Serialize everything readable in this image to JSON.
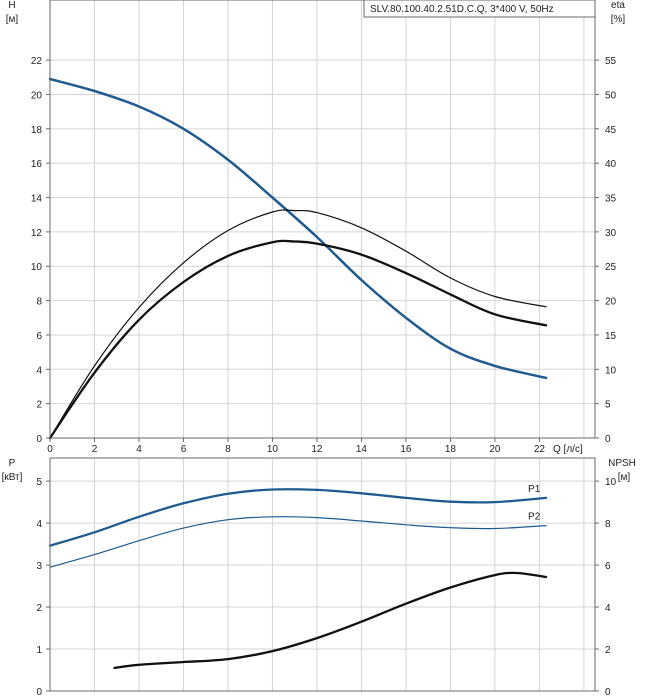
{
  "chart_data": [
    {
      "type": "line",
      "title": "SLV.80.100.40.2.51D.C.Q, 3*400 V, 50Hz",
      "xlabel": "Q [л/с]",
      "x_ticks": [
        "0",
        "2",
        "4",
        "6",
        "8",
        "10",
        "12",
        "14",
        "16",
        "18",
        "20",
        "22"
      ],
      "xlim": [
        0,
        24.5
      ],
      "ylabel_left": [
        "H",
        "[м]"
      ],
      "ylim_left": [
        0,
        25.5
      ],
      "y_ticks_left": [
        "0",
        "2",
        "4",
        "6",
        "8",
        "10",
        "12",
        "14",
        "16",
        "18",
        "20",
        "22"
      ],
      "ylabel_right": [
        "eta",
        "[%]"
      ],
      "ylim_right": [
        0,
        63.75
      ],
      "y_ticks_right": [
        "0",
        "5",
        "10",
        "15",
        "20",
        "25",
        "30",
        "35",
        "40",
        "45",
        "50",
        "55"
      ],
      "grid": true,
      "series": [
        {
          "axis": "left",
          "color": "#1f5b8f",
          "width": 2.5,
          "x": [
            0,
            2,
            4,
            6,
            8,
            10,
            12,
            14,
            16,
            18,
            20,
            22.3
          ],
          "y": [
            20.9,
            20.2,
            19.3,
            18.0,
            16.2,
            14.0,
            11.7,
            9.2,
            7.0,
            5.2,
            4.2,
            3.5
          ]
        },
        {
          "axis": "right",
          "color": "#111111",
          "width": 1.2,
          "x": [
            0,
            2,
            4,
            6,
            8,
            10,
            11,
            12,
            14,
            16,
            18,
            20,
            22.3
          ],
          "y": [
            0,
            10.5,
            19.0,
            25.5,
            30.2,
            32.9,
            33.1,
            32.8,
            30.6,
            27.2,
            23.3,
            20.6,
            19.1
          ]
        },
        {
          "axis": "right",
          "color": "#111111",
          "width": 2.3,
          "x": [
            0,
            2,
            4,
            6,
            8,
            10,
            11,
            12,
            14,
            16,
            18,
            20,
            22.3
          ],
          "y": [
            0,
            9.5,
            17.2,
            22.7,
            26.5,
            28.5,
            28.6,
            28.3,
            26.7,
            24.0,
            20.9,
            18.0,
            16.4
          ]
        }
      ]
    },
    {
      "type": "line",
      "xlim": [
        0,
        24.5
      ],
      "ylabel_left": [
        "P",
        "[кВт]"
      ],
      "ylim_left": [
        0,
        5.55
      ],
      "y_ticks_left": [
        "0",
        "1",
        "2",
        "3",
        "4",
        "5"
      ],
      "ylabel_right": [
        "NPSH",
        "[м]"
      ],
      "ylim_right": [
        0,
        11.1
      ],
      "y_ticks_right": [
        "0",
        "2",
        "4",
        "6",
        "8",
        "10"
      ],
      "grid": true,
      "series": [
        {
          "name": "P1",
          "axis": "left",
          "color": "#1f5b8f",
          "width": 2.3,
          "x": [
            0,
            2,
            4,
            6,
            8,
            10,
            12,
            14,
            16,
            18,
            20,
            22.3
          ],
          "y": [
            3.46,
            3.78,
            4.15,
            4.47,
            4.7,
            4.8,
            4.79,
            4.71,
            4.6,
            4.51,
            4.5,
            4.6
          ]
        },
        {
          "name": "P2",
          "axis": "left",
          "color": "#1f5b8f",
          "width": 1.2,
          "x": [
            0,
            2,
            4,
            6,
            8,
            10,
            12,
            14,
            16,
            18,
            20,
            22.3
          ],
          "y": [
            2.95,
            3.25,
            3.58,
            3.88,
            4.08,
            4.15,
            4.13,
            4.05,
            3.96,
            3.89,
            3.87,
            3.94
          ]
        },
        {
          "axis": "right",
          "color": "#111111",
          "width": 2.3,
          "x": [
            2.9,
            4,
            6,
            8,
            10,
            12,
            14,
            16,
            18,
            20,
            21,
            22.3
          ],
          "y": [
            1.1,
            1.25,
            1.38,
            1.52,
            1.9,
            2.52,
            3.3,
            4.16,
            4.93,
            5.52,
            5.62,
            5.43
          ]
        }
      ]
    }
  ]
}
